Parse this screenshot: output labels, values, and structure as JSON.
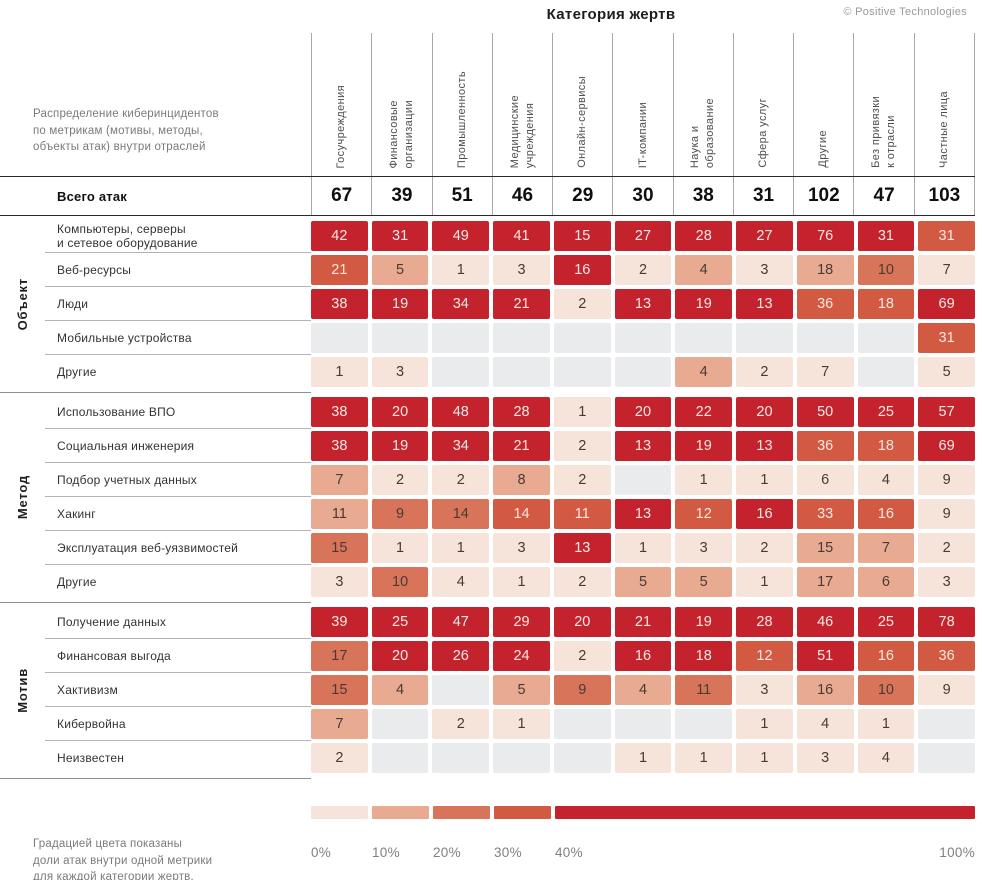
{
  "header": {
    "title": "Категория жертв",
    "copyright": "© Positive Technologies",
    "description": "Распределение киберинцидентов\nпо метрикам (мотивы, методы,\nобъекты атак) внутри отраслей"
  },
  "chart_data": {
    "type": "heatmap",
    "title": "Категория жертв",
    "columns": [
      "Госучреждения",
      "Финансовые\nорганизации",
      "Промышленность",
      "Медицинские\nучреждения",
      "Онлайн-сервисы",
      "IT-компании",
      "Наука и\nобразование",
      "Сфера услуг",
      "Другие",
      "Без привязки\nк отрасли",
      "Частные лица"
    ],
    "totals_label": "Всего атак",
    "totals": [
      67,
      39,
      51,
      46,
      29,
      30,
      38,
      31,
      102,
      47,
      103
    ],
    "sections": [
      {
        "name": "Объект",
        "rows": [
          {
            "label": "Компьютеры, серверы\nи сетевое оборудование",
            "values": [
              42,
              31,
              49,
              41,
              15,
              27,
              28,
              27,
              76,
              31,
              31
            ]
          },
          {
            "label": "Веб-ресурсы",
            "values": [
              21,
              5,
              1,
              3,
              16,
              2,
              4,
              3,
              18,
              10,
              7
            ]
          },
          {
            "label": "Люди",
            "values": [
              38,
              19,
              34,
              21,
              2,
              13,
              19,
              13,
              36,
              18,
              69
            ]
          },
          {
            "label": "Мобильные устройства",
            "values": [
              null,
              null,
              null,
              null,
              null,
              null,
              null,
              null,
              null,
              null,
              31
            ]
          },
          {
            "label": "Другие",
            "values": [
              1,
              3,
              null,
              null,
              null,
              null,
              4,
              2,
              7,
              null,
              5
            ]
          }
        ]
      },
      {
        "name": "Метод",
        "rows": [
          {
            "label": "Использование ВПО",
            "values": [
              38,
              20,
              48,
              28,
              1,
              20,
              22,
              20,
              50,
              25,
              57
            ]
          },
          {
            "label": "Социальная инженерия",
            "values": [
              38,
              19,
              34,
              21,
              2,
              13,
              19,
              13,
              36,
              18,
              69
            ]
          },
          {
            "label": "Подбор учетных данных",
            "values": [
              7,
              2,
              2,
              8,
              2,
              null,
              1,
              1,
              6,
              4,
              9
            ]
          },
          {
            "label": "Хакинг",
            "values": [
              11,
              9,
              14,
              14,
              11,
              13,
              12,
              16,
              33,
              16,
              9
            ]
          },
          {
            "label": "Эксплуатация веб-уязвимостей",
            "values": [
              15,
              1,
              1,
              3,
              13,
              1,
              3,
              2,
              15,
              7,
              2
            ]
          },
          {
            "label": "Другие",
            "values": [
              3,
              10,
              4,
              1,
              2,
              5,
              5,
              1,
              17,
              6,
              3
            ]
          }
        ]
      },
      {
        "name": "Мотив",
        "rows": [
          {
            "label": "Получение данных",
            "values": [
              39,
              25,
              47,
              29,
              20,
              21,
              19,
              28,
              46,
              25,
              78
            ]
          },
          {
            "label": "Финансовая выгода",
            "values": [
              17,
              20,
              26,
              24,
              2,
              16,
              18,
              12,
              51,
              16,
              36
            ]
          },
          {
            "label": "Хактивизм",
            "values": [
              15,
              4,
              null,
              5,
              9,
              4,
              11,
              3,
              16,
              10,
              9
            ]
          },
          {
            "label": "Кибервойна",
            "values": [
              7,
              null,
              2,
              1,
              null,
              null,
              null,
              1,
              4,
              1,
              null
            ]
          },
          {
            "label": "Неизвестен",
            "values": [
              2,
              null,
              null,
              null,
              null,
              1,
              1,
              1,
              3,
              4,
              null
            ]
          }
        ]
      }
    ],
    "color_rule": "cell shade = value as share of column total, buckets: <10%, 10-20%, 20-30%, 30-40%, >=40%",
    "overrides": [
      {
        "section": 2,
        "row": 2,
        "col": 4,
        "bucket": 2
      }
    ]
  },
  "legend": {
    "labels": [
      "0%",
      "10%",
      "20%",
      "30%",
      "40%",
      "100%"
    ],
    "note": "Градацией цвета показаны\nдоли атак внутри одной метрики\nдля каждой категории жертв."
  },
  "palette": {
    "buckets": [
      "#f6e3d9",
      "#e8aa91",
      "#d8745a",
      "#d25942",
      "#c4232d"
    ],
    "empty": "#e9ebec",
    "cell_text_dark": "#4a3a34",
    "cell_text_light": "#f9e9e3"
  }
}
